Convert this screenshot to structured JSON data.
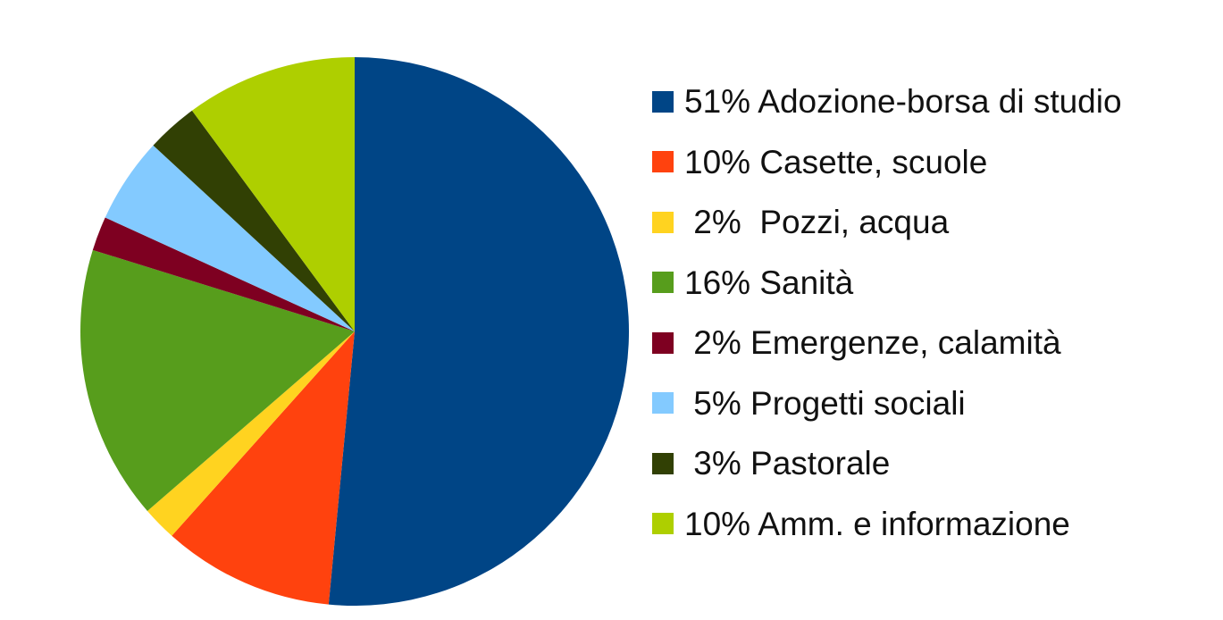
{
  "chart_data": {
    "type": "pie",
    "start_angle": "top",
    "direction": "clockwise",
    "legend_position": "right",
    "slices": [
      {
        "label": "51% Adozione-borsa di studio",
        "value": 51,
        "color": "#004586"
      },
      {
        "label": "10% Casette, scuole",
        "value": 10,
        "color": "#ff420e"
      },
      {
        "label": " 2%  Pozzi, acqua",
        "value": 2,
        "color": "#ffd320"
      },
      {
        "label": "16% Sanità",
        "value": 16,
        "color": "#579d1c"
      },
      {
        "label": " 2% Emergenze, calamità",
        "value": 2,
        "color": "#7e0021"
      },
      {
        "label": " 5% Progetti sociali",
        "value": 5,
        "color": "#83caff"
      },
      {
        "label": " 3% Pastorale",
        "value": 3,
        "color": "#314004"
      },
      {
        "label": "10% Amm. e informazione",
        "value": 10,
        "color": "#aecf00"
      }
    ]
  }
}
